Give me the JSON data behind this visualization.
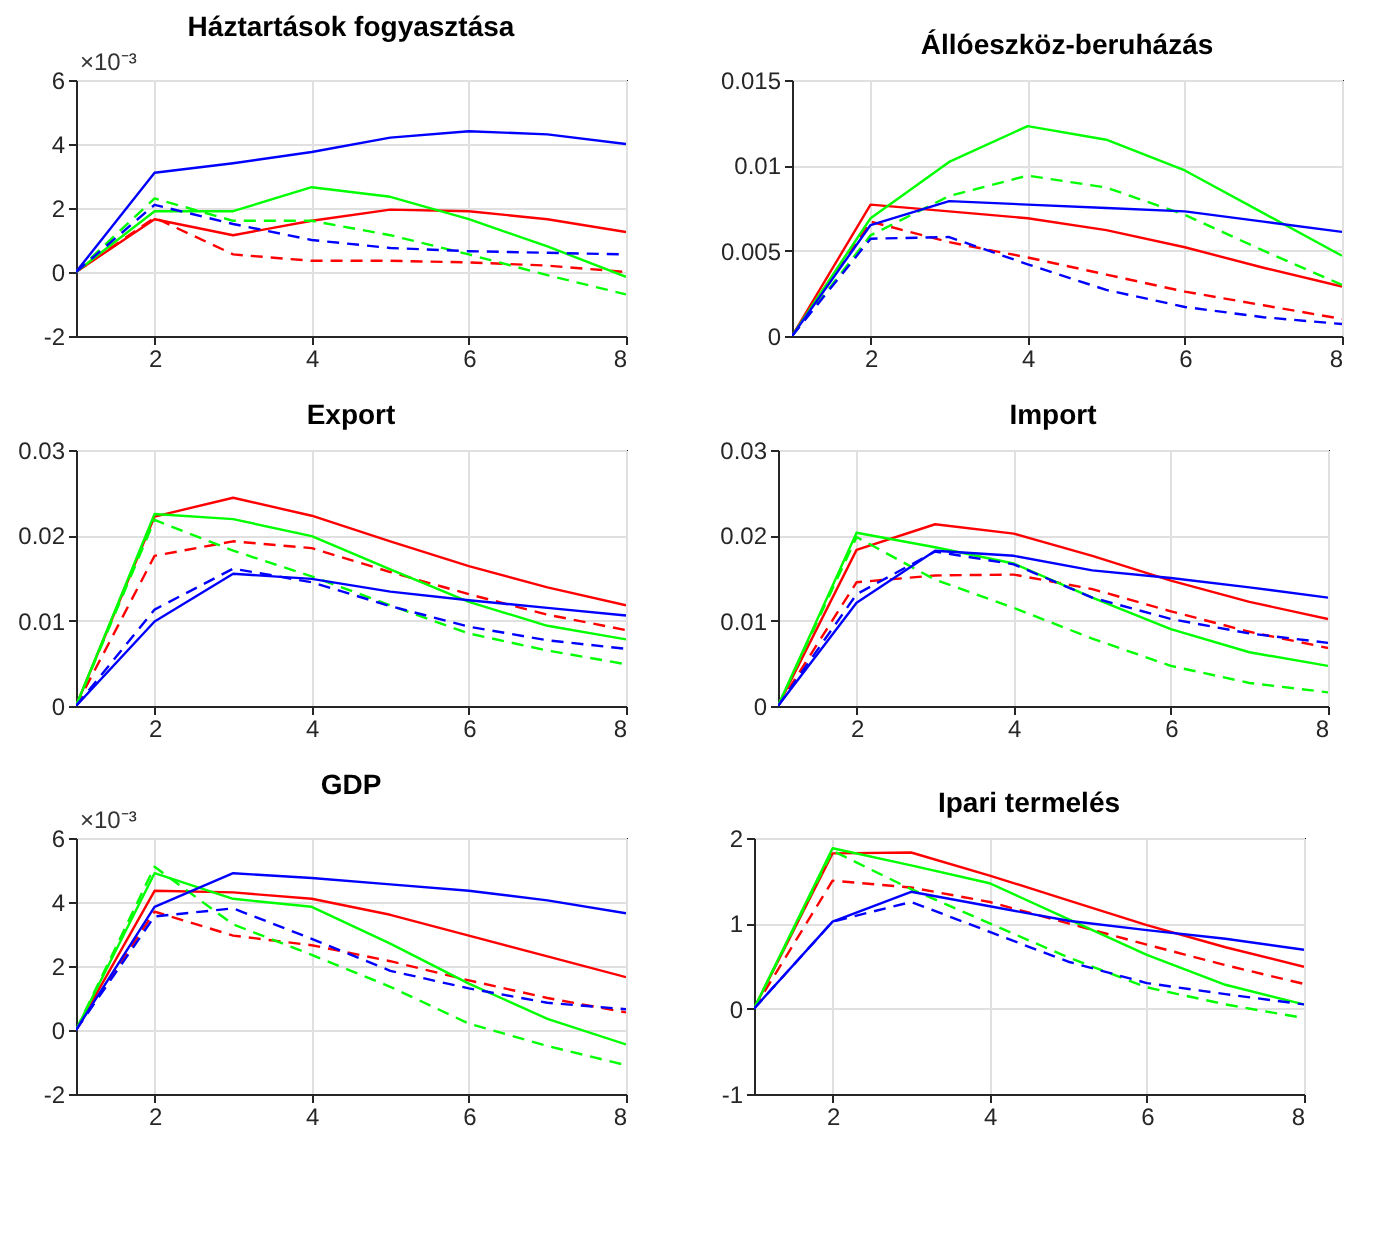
{
  "chart_data": [
    {
      "type": "line",
      "title": "Háztartások fogyasztása",
      "annotations": [
        "×10⁻³"
      ],
      "x": [
        1,
        2,
        3,
        4,
        5,
        6,
        7,
        8
      ],
      "xlim": [
        1,
        8
      ],
      "xticks": [
        2,
        4,
        6,
        8
      ],
      "ylim": [
        -2,
        6
      ],
      "yticks": [
        -2,
        0,
        2,
        4,
        6
      ],
      "grid": true,
      "series": [
        {
          "color": "#ff0000",
          "line_style": "solid",
          "values": [
            0,
            1.65,
            1.15,
            1.6,
            1.95,
            1.9,
            1.65,
            1.25
          ]
        },
        {
          "color": "#ff0000",
          "line_style": "dashed",
          "values": [
            0,
            1.7,
            0.55,
            0.35,
            0.35,
            0.3,
            0.2,
            0.0
          ]
        },
        {
          "color": "#00ff00",
          "line_style": "solid",
          "values": [
            0,
            1.9,
            1.9,
            2.65,
            2.35,
            1.65,
            0.8,
            -0.15
          ]
        },
        {
          "color": "#00ff00",
          "line_style": "dashed",
          "values": [
            0,
            2.3,
            1.6,
            1.6,
            1.15,
            0.55,
            -0.1,
            -0.7
          ]
        },
        {
          "color": "#0000ff",
          "line_style": "solid",
          "values": [
            0,
            3.1,
            3.4,
            3.75,
            4.2,
            4.4,
            4.3,
            4.0
          ]
        },
        {
          "color": "#0000ff",
          "line_style": "dashed",
          "values": [
            0,
            2.1,
            1.5,
            1.0,
            0.75,
            0.65,
            0.6,
            0.55
          ]
        }
      ]
    },
    {
      "type": "line",
      "title": "Állóeszköz-beruházás",
      "x": [
        1,
        2,
        3,
        4,
        5,
        6,
        7,
        8
      ],
      "xlim": [
        1,
        8
      ],
      "xticks": [
        2,
        4,
        6,
        8
      ],
      "ylim": [
        0,
        0.015
      ],
      "yticks": [
        0,
        0.005,
        0.01,
        0.015
      ],
      "grid": true,
      "series": [
        {
          "color": "#ff0000",
          "line_style": "solid",
          "values": [
            0,
            0.0077,
            0.0073,
            0.0069,
            0.0062,
            0.0052,
            0.004,
            0.0029
          ]
        },
        {
          "color": "#ff0000",
          "line_style": "dashed",
          "values": [
            0,
            0.0067,
            0.0055,
            0.0046,
            0.0036,
            0.0026,
            0.0018,
            0.001
          ]
        },
        {
          "color": "#00ff00",
          "line_style": "solid",
          "values": [
            0,
            0.0069,
            0.0102,
            0.0123,
            0.0115,
            0.0097,
            0.0072,
            0.0047
          ]
        },
        {
          "color": "#00ff00",
          "line_style": "dashed",
          "values": [
            0,
            0.0059,
            0.0082,
            0.0094,
            0.0087,
            0.0071,
            0.005,
            0.003
          ]
        },
        {
          "color": "#0000ff",
          "line_style": "solid",
          "values": [
            0,
            0.0065,
            0.0079,
            0.0077,
            0.0075,
            0.0073,
            0.0067,
            0.0061
          ]
        },
        {
          "color": "#0000ff",
          "line_style": "dashed",
          "values": [
            0,
            0.0057,
            0.0058,
            0.0042,
            0.0027,
            0.0017,
            0.0011,
            0.0007
          ]
        }
      ]
    },
    {
      "type": "line",
      "title": "Export",
      "x": [
        1,
        2,
        3,
        4,
        5,
        6,
        7,
        8
      ],
      "xlim": [
        1,
        8
      ],
      "xticks": [
        2,
        4,
        6,
        8
      ],
      "ylim": [
        0,
        0.03
      ],
      "yticks": [
        0,
        0.01,
        0.02,
        0.03
      ],
      "grid": true,
      "series": [
        {
          "color": "#ff0000",
          "line_style": "solid",
          "values": [
            0,
            0.0222,
            0.0244,
            0.0223,
            0.0193,
            0.0164,
            0.0139,
            0.0118
          ]
        },
        {
          "color": "#ff0000",
          "line_style": "dashed",
          "values": [
            0,
            0.0176,
            0.0193,
            0.0185,
            0.0157,
            0.0131,
            0.0107,
            0.0089
          ]
        },
        {
          "color": "#00ff00",
          "line_style": "solid",
          "values": [
            0,
            0.0225,
            0.0219,
            0.0199,
            0.016,
            0.0122,
            0.0094,
            0.0078
          ]
        },
        {
          "color": "#00ff00",
          "line_style": "dashed",
          "values": [
            0,
            0.0218,
            0.0182,
            0.0152,
            0.0118,
            0.0085,
            0.0065,
            0.0049
          ]
        },
        {
          "color": "#0000ff",
          "line_style": "solid",
          "values": [
            0,
            0.0099,
            0.0155,
            0.0149,
            0.0134,
            0.0124,
            0.0115,
            0.0106
          ]
        },
        {
          "color": "#0000ff",
          "line_style": "dashed",
          "values": [
            0,
            0.0113,
            0.0161,
            0.0145,
            0.0117,
            0.0093,
            0.0077,
            0.0067
          ]
        }
      ]
    },
    {
      "type": "line",
      "title": "Import",
      "x": [
        1,
        2,
        3,
        4,
        5,
        6,
        7,
        8
      ],
      "xlim": [
        1,
        8
      ],
      "xticks": [
        2,
        4,
        6,
        8
      ],
      "ylim": [
        0,
        0.03
      ],
      "yticks": [
        0,
        0.01,
        0.02,
        0.03
      ],
      "grid": true,
      "series": [
        {
          "color": "#ff0000",
          "line_style": "solid",
          "values": [
            0,
            0.0183,
            0.0213,
            0.0202,
            0.0176,
            0.0147,
            0.0122,
            0.0102
          ]
        },
        {
          "color": "#ff0000",
          "line_style": "dashed",
          "values": [
            0,
            0.0145,
            0.0153,
            0.0154,
            0.0137,
            0.0111,
            0.0087,
            0.0068
          ]
        },
        {
          "color": "#00ff00",
          "line_style": "solid",
          "values": [
            0,
            0.0203,
            0.0186,
            0.0167,
            0.0127,
            0.009,
            0.0063,
            0.0047
          ]
        },
        {
          "color": "#00ff00",
          "line_style": "dashed",
          "values": [
            0,
            0.0198,
            0.0148,
            0.0115,
            0.0079,
            0.0047,
            0.0027,
            0.0016
          ]
        },
        {
          "color": "#0000ff",
          "line_style": "solid",
          "values": [
            0,
            0.0121,
            0.0182,
            0.0176,
            0.0159,
            0.015,
            0.0139,
            0.0127
          ]
        },
        {
          "color": "#0000ff",
          "line_style": "dashed",
          "values": [
            0,
            0.0131,
            0.0181,
            0.0166,
            0.0127,
            0.0102,
            0.0085,
            0.0074
          ]
        }
      ]
    },
    {
      "type": "line",
      "title": "GDP",
      "annotations": [
        "×10⁻³"
      ],
      "x": [
        1,
        2,
        3,
        4,
        5,
        6,
        7,
        8
      ],
      "xlim": [
        1,
        8
      ],
      "xticks": [
        2,
        4,
        6,
        8
      ],
      "ylim": [
        -2,
        6
      ],
      "yticks": [
        -2,
        0,
        2,
        4,
        6
      ],
      "grid": true,
      "series": [
        {
          "color": "#ff0000",
          "line_style": "solid",
          "values": [
            0,
            4.35,
            4.3,
            4.1,
            3.6,
            2.95,
            2.3,
            1.65
          ]
        },
        {
          "color": "#ff0000",
          "line_style": "dashed",
          "values": [
            0,
            3.7,
            2.95,
            2.65,
            2.15,
            1.55,
            1.0,
            0.55
          ]
        },
        {
          "color": "#00ff00",
          "line_style": "solid",
          "values": [
            0,
            4.9,
            4.1,
            3.85,
            2.7,
            1.45,
            0.35,
            -0.45
          ]
        },
        {
          "color": "#00ff00",
          "line_style": "dashed",
          "values": [
            0,
            5.1,
            3.3,
            2.35,
            1.35,
            0.2,
            -0.5,
            -1.1
          ]
        },
        {
          "color": "#0000ff",
          "line_style": "solid",
          "values": [
            0,
            3.85,
            4.9,
            4.75,
            4.55,
            4.35,
            4.05,
            3.65
          ]
        },
        {
          "color": "#0000ff",
          "line_style": "dashed",
          "values": [
            0,
            3.55,
            3.8,
            2.85,
            1.85,
            1.3,
            0.85,
            0.65
          ]
        }
      ]
    },
    {
      "type": "line",
      "title": "Ipari termelés",
      "x": [
        1,
        2,
        3,
        4,
        5,
        6,
        7,
        8
      ],
      "xlim": [
        1,
        8
      ],
      "xticks": [
        2,
        4,
        6,
        8
      ],
      "ylim": [
        -1,
        2
      ],
      "yticks": [
        -1,
        0,
        1,
        2
      ],
      "grid": true,
      "series": [
        {
          "color": "#ff0000",
          "line_style": "solid",
          "values": [
            0,
            1.82,
            1.83,
            1.56,
            1.27,
            0.98,
            0.72,
            0.49
          ]
        },
        {
          "color": "#ff0000",
          "line_style": "dashed",
          "values": [
            0,
            1.5,
            1.42,
            1.25,
            1.0,
            0.75,
            0.51,
            0.29
          ]
        },
        {
          "color": "#00ff00",
          "line_style": "solid",
          "values": [
            0,
            1.88,
            1.68,
            1.47,
            1.05,
            0.63,
            0.28,
            0.05
          ]
        },
        {
          "color": "#00ff00",
          "line_style": "dashed",
          "values": [
            0,
            1.85,
            1.4,
            1.0,
            0.6,
            0.25,
            0.05,
            -0.11
          ]
        },
        {
          "color": "#0000ff",
          "line_style": "solid",
          "values": [
            0,
            1.02,
            1.37,
            1.2,
            1.03,
            0.92,
            0.82,
            0.69
          ]
        },
        {
          "color": "#0000ff",
          "line_style": "dashed",
          "values": [
            0,
            1.02,
            1.25,
            0.9,
            0.55,
            0.3,
            0.17,
            0.05
          ]
        }
      ]
    }
  ]
}
